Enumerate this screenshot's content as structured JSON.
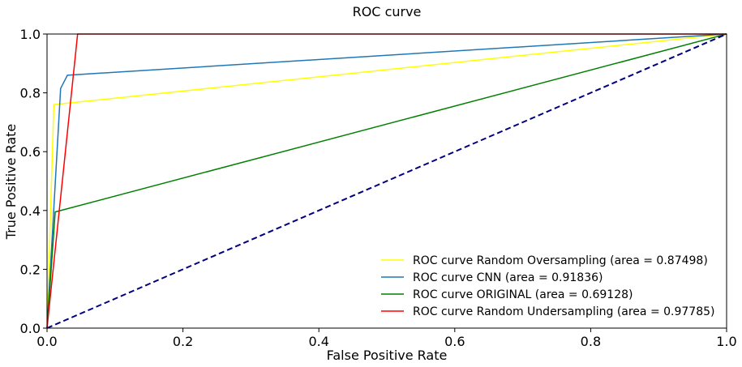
{
  "chart_data": {
    "type": "line",
    "title": "ROC curve",
    "xlabel": "False Positive Rate",
    "ylabel": "True Positive Rate",
    "xlim": [
      0.0,
      1.0
    ],
    "ylim": [
      0.0,
      1.0
    ],
    "xticks": [
      0.0,
      0.2,
      0.4,
      0.6,
      0.8,
      1.0
    ],
    "yticks": [
      0.0,
      0.2,
      0.4,
      0.6,
      0.8,
      1.0
    ],
    "tick_labels_x": [
      "0.0",
      "0.2",
      "0.4",
      "0.6",
      "0.8",
      "1.0"
    ],
    "tick_labels_y": [
      "0.0",
      "0.2",
      "0.4",
      "0.6",
      "0.8",
      "1.0"
    ],
    "grid": false,
    "legend_position": "lower-right",
    "series": [
      {
        "name": "ROC curve Random Oversampling (area = 0.87498)",
        "color": "#ffff00",
        "style": "solid",
        "x": [
          0.0,
          0.01,
          1.0
        ],
        "y": [
          0.0,
          0.76,
          1.0
        ]
      },
      {
        "name": "ROC curve CNN (area = 0.91836)",
        "color": "#1f77b4",
        "style": "solid",
        "x": [
          0.0,
          0.02,
          0.03,
          1.0
        ],
        "y": [
          0.0,
          0.815,
          0.86,
          1.0
        ]
      },
      {
        "name": "ROC curve ORIGINAL (area = 0.69128)",
        "color": "#008000",
        "style": "solid",
        "x": [
          0.0,
          0.012,
          1.0
        ],
        "y": [
          0.0,
          0.395,
          1.0
        ]
      },
      {
        "name": "ROC curve Random Undersampling (area = 0.97785)",
        "color": "#ff0000",
        "style": "solid",
        "x": [
          0.0,
          0.045,
          1.0
        ],
        "y": [
          0.0,
          1.0,
          1.0
        ]
      },
      {
        "name": "",
        "color": "#000080",
        "style": "dashed",
        "x": [
          0.0,
          1.0
        ],
        "y": [
          0.0,
          1.0
        ]
      }
    ]
  }
}
